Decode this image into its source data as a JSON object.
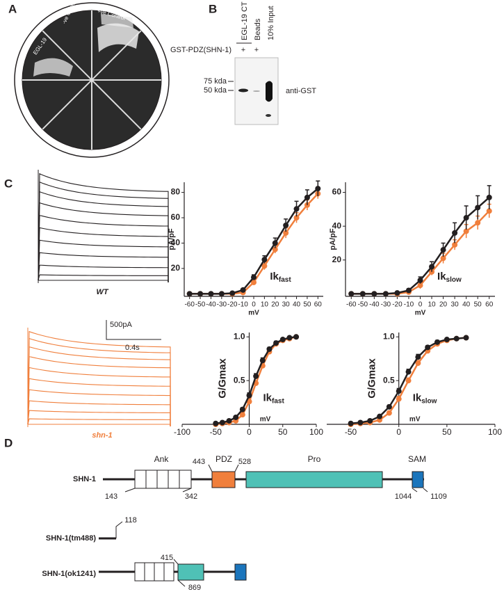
{
  "panel_labels": [
    "A",
    "B",
    "C",
    "D"
  ],
  "panel_a": {
    "labels": [
      "EGL-19",
      "-ve Control",
      "+ve Control"
    ]
  },
  "panel_b": {
    "column_labels": [
      "EGL-19 CT",
      "Beads",
      "10% Input"
    ],
    "row_label": "GST-PDZ(SHN-1)",
    "plus": [
      "+",
      "+"
    ],
    "markers": [
      "75 kda",
      "50 kda"
    ],
    "antibody": "anti-GST"
  },
  "panel_c": {
    "traces": [
      "WT",
      "shn-1"
    ],
    "scale": [
      "500pA",
      "0.4s"
    ]
  },
  "chart_data": [
    {
      "type": "line",
      "y_label": "pA/pF",
      "x_label": "mV",
      "annotation": "Ik",
      "annotation_sub": "fast",
      "x": [
        -60,
        -50,
        -40,
        -30,
        -20,
        -10,
        0,
        10,
        20,
        30,
        40,
        50,
        60
      ],
      "series": [
        {
          "name": "WT",
          "color": "#231f20",
          "values": [
            0,
            0,
            0,
            0,
            0.5,
            3,
            13,
            27,
            40,
            54,
            67,
            76,
            83
          ],
          "errors": [
            0.5,
            0.5,
            0.5,
            0.5,
            0.5,
            1,
            2,
            3,
            4,
            5,
            6,
            6,
            6
          ]
        },
        {
          "name": "shn-1",
          "color": "#f07f3c",
          "values": [
            0,
            0,
            0,
            0,
            0,
            1,
            9,
            22,
            35,
            48,
            60,
            70,
            79
          ],
          "errors": [
            0.5,
            0.5,
            0.5,
            0.5,
            0.5,
            1,
            2,
            3,
            3,
            4,
            4,
            4,
            4
          ]
        }
      ],
      "xlim": [
        -65,
        65
      ],
      "ylim": [
        -2,
        88
      ],
      "xticks": [
        -60,
        -50,
        -40,
        -30,
        -20,
        -10,
        0,
        10,
        20,
        30,
        40,
        50,
        60
      ],
      "yticks": [
        20,
        40,
        60,
        80
      ]
    },
    {
      "type": "line",
      "y_label": "pA/pF",
      "x_label": "mV",
      "annotation": "Ik",
      "annotation_sub": "slow",
      "x": [
        -60,
        -50,
        -40,
        -30,
        -20,
        -10,
        0,
        10,
        20,
        30,
        40,
        50,
        60
      ],
      "series": [
        {
          "name": "WT",
          "color": "#231f20",
          "values": [
            0,
            0,
            0,
            0,
            0.5,
            2,
            8,
            16,
            26,
            36,
            45,
            51,
            57
          ],
          "errors": [
            0.5,
            0.5,
            0.5,
            0.5,
            0.5,
            1,
            2,
            3,
            4,
            6,
            7,
            7,
            7
          ]
        },
        {
          "name": "shn-1",
          "color": "#f07f3c",
          "values": [
            0,
            0,
            0,
            0,
            0,
            1,
            5,
            13,
            21,
            29,
            37,
            42,
            49
          ],
          "errors": [
            0.5,
            0.5,
            0.5,
            0.5,
            0.5,
            1,
            2,
            2,
            3,
            3,
            4,
            4,
            4
          ]
        }
      ],
      "xlim": [
        -65,
        65
      ],
      "ylim": [
        -1.5,
        66
      ],
      "xticks": [
        -60,
        -50,
        -40,
        -30,
        -20,
        -10,
        0,
        10,
        20,
        30,
        40,
        50,
        60
      ],
      "yticks": [
        20,
        40,
        60
      ]
    },
    {
      "type": "line",
      "y_label": "G/Gmax",
      "x_label": "mV",
      "annotation": "Ik",
      "annotation_sub": "fast",
      "x": [
        -50,
        -40,
        -30,
        -20,
        -10,
        0,
        10,
        20,
        30,
        40,
        50,
        60,
        70
      ],
      "series": [
        {
          "name": "WT",
          "color": "#231f20",
          "values": [
            0.01,
            0.02,
            0.04,
            0.08,
            0.17,
            0.33,
            0.55,
            0.73,
            0.86,
            0.93,
            0.97,
            0.99,
            1.0
          ],
          "errors": [
            0.01,
            0.01,
            0.01,
            0.01,
            0.02,
            0.03,
            0.03,
            0.03,
            0.02,
            0.02,
            0.01,
            0.01,
            0.01
          ]
        },
        {
          "name": "shn-1",
          "color": "#f07f3c",
          "values": [
            0,
            0.01,
            0.02,
            0.04,
            0.11,
            0.26,
            0.47,
            0.67,
            0.83,
            0.92,
            0.96,
            0.98,
            1.0
          ],
          "errors": [
            0.01,
            0.01,
            0.01,
            0.01,
            0.02,
            0.03,
            0.03,
            0.03,
            0.02,
            0.02,
            0.01,
            0.01,
            0.01
          ]
        }
      ],
      "xlim": [
        -100,
        100
      ],
      "ylim": [
        0,
        1.05
      ],
      "xticks": [
        -100,
        -50,
        0,
        50,
        100
      ],
      "yticks": [
        0.5,
        {
          "value": 1.0,
          "label": "1.0"
        }
      ]
    },
    {
      "type": "line",
      "y_label": "G/Gmax",
      "x_label": "mV",
      "annotation": "Ik",
      "annotation_sub": "slow",
      "x": [
        -50,
        -40,
        -30,
        -20,
        -10,
        0,
        10,
        20,
        30,
        40,
        50,
        60,
        70
      ],
      "series": [
        {
          "name": "WT",
          "color": "#231f20",
          "values": [
            0.01,
            0.02,
            0.04,
            0.09,
            0.2,
            0.38,
            0.6,
            0.77,
            0.88,
            0.94,
            0.97,
            0.98,
            0.99
          ],
          "errors": [
            0.01,
            0.01,
            0.01,
            0.01,
            0.02,
            0.03,
            0.03,
            0.03,
            0.02,
            0.02,
            0.01,
            0.01,
            0.01
          ]
        },
        {
          "name": "shn-1",
          "color": "#f07f3c",
          "values": [
            0,
            0.01,
            0.02,
            0.05,
            0.13,
            0.29,
            0.5,
            0.7,
            0.84,
            0.92,
            0.96,
            0.98,
            0.99
          ],
          "errors": [
            0.01,
            0.01,
            0.01,
            0.01,
            0.02,
            0.03,
            0.03,
            0.03,
            0.02,
            0.02,
            0.01,
            0.01,
            0.01
          ]
        }
      ],
      "xlim": [
        -75,
        100
      ],
      "ylim": [
        0,
        1.05
      ],
      "xticks": [
        -50,
        0,
        50,
        100
      ],
      "yticks": [
        0.5,
        {
          "value": 1.0,
          "label": "1.0"
        }
      ]
    }
  ],
  "panel_d": {
    "proteins": [
      "SHN-1",
      "SHN-1(tm488)",
      "SHN-1(ok1241)"
    ],
    "domains": [
      "Ank",
      "PDZ",
      "Pro",
      "SAM"
    ],
    "positions": [
      "443",
      "528",
      "143",
      "342",
      "1044",
      "1109",
      "118",
      "415",
      "869"
    ]
  }
}
